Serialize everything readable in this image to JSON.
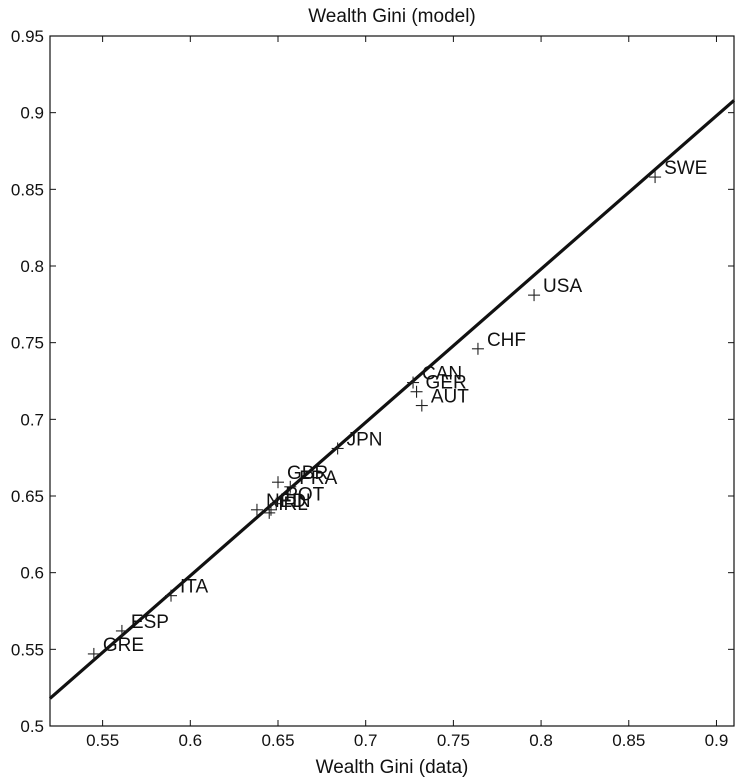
{
  "chart_data": {
    "type": "scatter",
    "title": "Wealth Gini (model)",
    "xlabel": "Wealth Gini (data)",
    "ylabel": "",
    "xlim": [
      0.52,
      0.91
    ],
    "ylim": [
      0.5,
      0.95
    ],
    "xticks": [
      0.55,
      0.6,
      0.65,
      0.7,
      0.75,
      0.8,
      0.85,
      0.9
    ],
    "xtick_labels": [
      "0.55",
      "0.6",
      "0.65",
      "0.7",
      "0.75",
      "0.8",
      "0.85",
      "0.9"
    ],
    "yticks": [
      0.5,
      0.55,
      0.6,
      0.65,
      0.7,
      0.75,
      0.8,
      0.85,
      0.9,
      0.95
    ],
    "ytick_labels": [
      "0.5",
      "0.55",
      "0.6",
      "0.65",
      "0.7",
      "0.75",
      "0.8",
      "0.85",
      "0.9",
      "0.95"
    ],
    "grid": false,
    "marker": "+",
    "points": [
      {
        "label": "SWE",
        "x": 0.865,
        "y": 0.858
      },
      {
        "label": "USA",
        "x": 0.796,
        "y": 0.781
      },
      {
        "label": "CHF",
        "x": 0.764,
        "y": 0.746
      },
      {
        "label": "CAN",
        "x": 0.727,
        "y": 0.724
      },
      {
        "label": "GER",
        "x": 0.729,
        "y": 0.718
      },
      {
        "label": "AUT",
        "x": 0.732,
        "y": 0.709
      },
      {
        "label": "JPN",
        "x": 0.684,
        "y": 0.681
      },
      {
        "label": "GBR",
        "x": 0.65,
        "y": 0.659
      },
      {
        "label": "FRA",
        "x": 0.657,
        "y": 0.656
      },
      {
        "label": "NED",
        "x": 0.638,
        "y": 0.641
      },
      {
        "label": "FIN",
        "x": 0.646,
        "y": 0.641
      },
      {
        "label": "POT",
        "x": 0.649,
        "y": 0.645
      },
      {
        "label": "IRL",
        "x": 0.645,
        "y": 0.639
      },
      {
        "label": "ITA",
        "x": 0.589,
        "y": 0.585
      },
      {
        "label": "ESP",
        "x": 0.561,
        "y": 0.562
      },
      {
        "label": "GRE",
        "x": 0.545,
        "y": 0.547
      }
    ],
    "fit_line": {
      "x": [
        0.52,
        0.91
      ],
      "y": [
        0.518,
        0.908
      ]
    }
  },
  "colors": {
    "axis": "#111111",
    "marker": "#222222",
    "line": "#111111",
    "background": "#ffffff"
  }
}
